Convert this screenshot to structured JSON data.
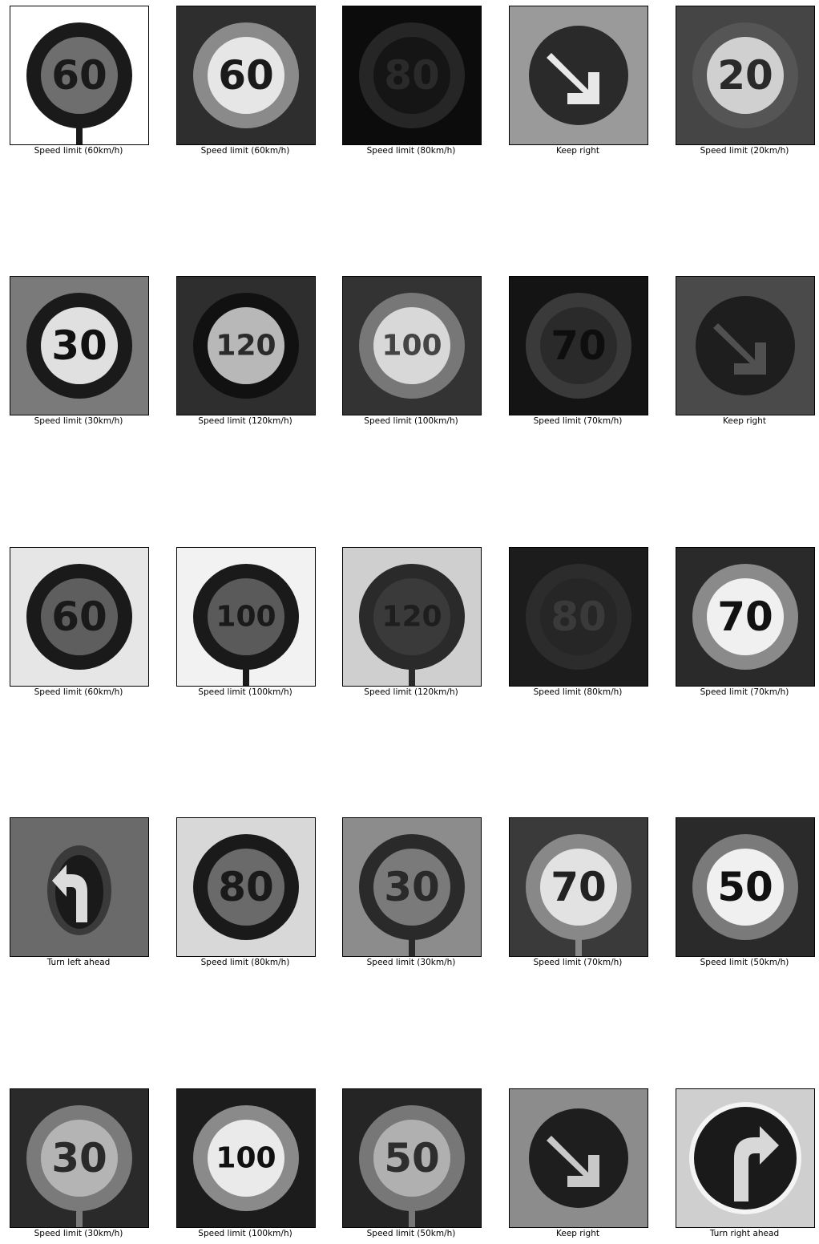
{
  "figure": {
    "rows": [
      {
        "cells": [
          {
            "label": "Speed limit (60km/h)",
            "sign": "speed",
            "number": "60",
            "bg": "#ffffff",
            "ring": "#1a1a1a",
            "face": "#6e6e6e",
            "text": "#1a1a1a",
            "pole": true
          },
          {
            "label": "Speed limit (60km/h)",
            "sign": "speed",
            "number": "60",
            "bg": "#2e2e2e",
            "ring": "#8a8a8a",
            "face": "#e6e6e6",
            "text": "#1a1a1a",
            "pole": false
          },
          {
            "label": "Speed limit (80km/h)",
            "sign": "speed",
            "number": "80",
            "bg": "#0c0c0c",
            "ring": "#262626",
            "face": "#151515",
            "text": "#2a2a2a",
            "pole": false
          },
          {
            "label": "Keep right",
            "sign": "keep-right",
            "number": "",
            "bg": "#9a9a9a",
            "ring": "#2a2a2a",
            "face": "#2a2a2a",
            "text": "#e8e8e8",
            "pole": false
          },
          {
            "label": "Speed limit (20km/h)",
            "sign": "speed",
            "number": "20",
            "bg": "#454545",
            "ring": "#555555",
            "face": "#d0d0d0",
            "text": "#2a2a2a",
            "pole": false
          }
        ]
      },
      {
        "cells": [
          {
            "label": "Speed limit (30km/h)",
            "sign": "speed",
            "number": "30",
            "bg": "#7a7a7a",
            "ring": "#1a1a1a",
            "face": "#e0e0e0",
            "text": "#111111",
            "pole": false
          },
          {
            "label": "Speed limit (120km/h)",
            "sign": "speed",
            "number": "120",
            "bg": "#2e2e2e",
            "ring": "#111111",
            "face": "#b8b8b8",
            "text": "#2a2a2a",
            "pole": false
          },
          {
            "label": "Speed limit (100km/h)",
            "sign": "speed",
            "number": "100",
            "bg": "#333333",
            "ring": "#777777",
            "face": "#d8d8d8",
            "text": "#444444",
            "pole": false
          },
          {
            "label": "Speed limit (70km/h)",
            "sign": "speed",
            "number": "70",
            "bg": "#141414",
            "ring": "#3a3a3a",
            "face": "#2a2a2a",
            "text": "#0e0e0e",
            "pole": false
          },
          {
            "label": "Keep right",
            "sign": "keep-right",
            "number": "",
            "bg": "#4a4a4a",
            "ring": "#1e1e1e",
            "face": "#1e1e1e",
            "text": "#505050",
            "pole": false
          }
        ]
      },
      {
        "cells": [
          {
            "label": "Speed limit (60km/h)",
            "sign": "speed",
            "number": "60",
            "bg": "#e6e6e6",
            "ring": "#1a1a1a",
            "face": "#5e5e5e",
            "text": "#1a1a1a",
            "pole": false
          },
          {
            "label": "Speed limit (100km/h)",
            "sign": "speed",
            "number": "100",
            "bg": "#f2f2f2",
            "ring": "#1a1a1a",
            "face": "#5a5a5a",
            "text": "#1a1a1a",
            "pole": true
          },
          {
            "label": "Speed limit (120km/h)",
            "sign": "speed",
            "number": "120",
            "bg": "#cfcfcf",
            "ring": "#2a2a2a",
            "face": "#3a3a3a",
            "text": "#1e1e1e",
            "pole": true
          },
          {
            "label": "Speed limit (80km/h)",
            "sign": "speed",
            "number": "80",
            "bg": "#1c1c1c",
            "ring": "#2c2c2c",
            "face": "#262626",
            "text": "#3a3a3a",
            "pole": false
          },
          {
            "label": "Speed limit (70km/h)",
            "sign": "speed",
            "number": "70",
            "bg": "#2a2a2a",
            "ring": "#8a8a8a",
            "face": "#f0f0f0",
            "text": "#111111",
            "pole": false
          }
        ]
      },
      {
        "cells": [
          {
            "label": "Turn left ahead",
            "sign": "turn-left",
            "number": "",
            "bg": "#6a6a6a",
            "ring": "#3a3a3a",
            "face": "#1a1a1a",
            "text": "#dcdcdc",
            "pole": false
          },
          {
            "label": "Speed limit (80km/h)",
            "sign": "speed",
            "number": "80",
            "bg": "#d8d8d8",
            "ring": "#1a1a1a",
            "face": "#6a6a6a",
            "text": "#1a1a1a",
            "pole": false
          },
          {
            "label": "Speed limit (30km/h)",
            "sign": "speed",
            "number": "30",
            "bg": "#8c8c8c",
            "ring": "#2a2a2a",
            "face": "#7a7a7a",
            "text": "#2a2a2a",
            "pole": true
          },
          {
            "label": "Speed limit (70km/h)",
            "sign": "speed",
            "number": "70",
            "bg": "#3a3a3a",
            "ring": "#888888",
            "face": "#e2e2e2",
            "text": "#222222",
            "pole": true
          },
          {
            "label": "Speed limit (50km/h)",
            "sign": "speed",
            "number": "50",
            "bg": "#2a2a2a",
            "ring": "#7a7a7a",
            "face": "#f0f0f0",
            "text": "#111111",
            "pole": false
          }
        ]
      },
      {
        "cells": [
          {
            "label": "Speed limit (30km/h)",
            "sign": "speed",
            "number": "30",
            "bg": "#2a2a2a",
            "ring": "#7a7a7a",
            "face": "#b4b4b4",
            "text": "#2a2a2a",
            "pole": true
          },
          {
            "label": "Speed limit (100km/h)",
            "sign": "speed",
            "number": "100",
            "bg": "#1c1c1c",
            "ring": "#8a8a8a",
            "face": "#eaeaea",
            "text": "#111111",
            "pole": false
          },
          {
            "label": "Speed limit (50km/h)",
            "sign": "speed",
            "number": "50",
            "bg": "#252525",
            "ring": "#777777",
            "face": "#b0b0b0",
            "text": "#2e2e2e",
            "pole": true
          },
          {
            "label": "Keep right",
            "sign": "keep-right",
            "number": "",
            "bg": "#8c8c8c",
            "ring": "#1e1e1e",
            "face": "#1e1e1e",
            "text": "#c8c8c8",
            "pole": false
          },
          {
            "label": "Turn right ahead",
            "sign": "turn-right",
            "number": "",
            "bg": "#cfcfcf",
            "ring": "#f4f4f4",
            "face": "#1a1a1a",
            "text": "#d8d8d8",
            "pole": false
          }
        ]
      }
    ]
  }
}
